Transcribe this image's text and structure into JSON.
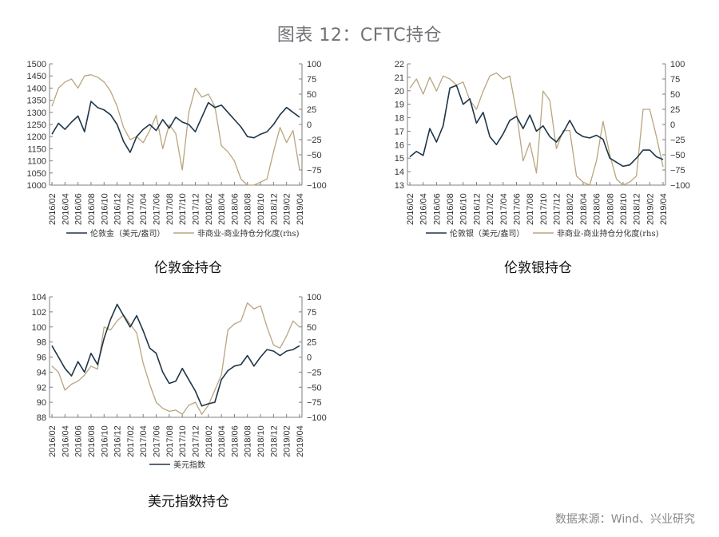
{
  "page": {
    "title": "图表 12：CFTC持仓",
    "source": "数据来源：Wind、兴业研究"
  },
  "colors": {
    "primary_line": "#1f3548",
    "rhs_line": "#b9a57f",
    "axis": "#7f7f7f"
  },
  "chart_data": [
    {
      "id": "gold",
      "type": "line",
      "title": "伦敦金持仓",
      "x": [
        "2016/02",
        "2016/03",
        "2016/04",
        "2016/05",
        "2016/06",
        "2016/07",
        "2016/08",
        "2016/09",
        "2016/10",
        "2016/11",
        "2016/12",
        "2017/01",
        "2017/02",
        "2017/03",
        "2017/04",
        "2017/05",
        "2017/06",
        "2017/07",
        "2017/08",
        "2017/09",
        "2017/10",
        "2017/11",
        "2017/12",
        "2018/01",
        "2018/02",
        "2018/03",
        "2018/04",
        "2018/05",
        "2018/06",
        "2018/07",
        "2018/08",
        "2018/09",
        "2018/10",
        "2018/11",
        "2018/12",
        "2019/01",
        "2019/02",
        "2019/03",
        "2019/04"
      ],
      "xticks": [
        "2016/02",
        "2016/04",
        "2016/06",
        "2016/08",
        "2016/10",
        "2016/12",
        "2017/02",
        "2017/04",
        "2017/06",
        "2017/08",
        "2017/10",
        "2017/12",
        "2018/02",
        "2018/04",
        "2018/06",
        "2018/08",
        "2018/10",
        "2018/12",
        "2019/02",
        "2019/04"
      ],
      "ylim": [
        1000,
        1500
      ],
      "yticks": [
        1000,
        1050,
        1100,
        1150,
        1200,
        1250,
        1300,
        1350,
        1400,
        1450,
        1500
      ],
      "y2lim": [
        -100,
        100
      ],
      "y2ticks": [
        -100,
        -75,
        -50,
        -25,
        0,
        25,
        50,
        75,
        100
      ],
      "series": [
        {
          "name": "伦敦金（美元/盎司）",
          "axis": "left",
          "values": [
            1210,
            1255,
            1230,
            1260,
            1285,
            1220,
            1345,
            1320,
            1310,
            1290,
            1250,
            1180,
            1135,
            1200,
            1230,
            1250,
            1225,
            1270,
            1235,
            1280,
            1260,
            1250,
            1220,
            1280,
            1340,
            1320,
            1330,
            1300,
            1270,
            1240,
            1200,
            1195,
            1210,
            1220,
            1250,
            1290,
            1320,
            1300,
            1280
          ]
        },
        {
          "name": "非商业-商业持仓分化度(rhs)",
          "axis": "right",
          "values": [
            30,
            60,
            70,
            75,
            60,
            80,
            82,
            78,
            70,
            55,
            30,
            -5,
            -25,
            -20,
            -30,
            -10,
            15,
            -40,
            0,
            -15,
            -75,
            20,
            60,
            45,
            50,
            30,
            -35,
            -45,
            -60,
            -90,
            -100,
            -100,
            -95,
            -90,
            -45,
            -5,
            -30,
            -10,
            -75
          ]
        }
      ],
      "legend": [
        "伦敦金（美元/盎司）",
        "非商业-商业持仓分化度(rhs)"
      ]
    },
    {
      "id": "silver",
      "type": "line",
      "title": "伦敦银持仓",
      "x": [
        "2016/02",
        "2016/03",
        "2016/04",
        "2016/05",
        "2016/06",
        "2016/07",
        "2016/08",
        "2016/09",
        "2016/10",
        "2016/11",
        "2016/12",
        "2017/01",
        "2017/02",
        "2017/03",
        "2017/04",
        "2017/05",
        "2017/06",
        "2017/07",
        "2017/08",
        "2017/09",
        "2017/10",
        "2017/11",
        "2017/12",
        "2018/01",
        "2018/02",
        "2018/03",
        "2018/04",
        "2018/05",
        "2018/06",
        "2018/07",
        "2018/08",
        "2018/09",
        "2018/10",
        "2018/11",
        "2018/12",
        "2019/01",
        "2019/02",
        "2019/03",
        "2019/04"
      ],
      "xticks": [
        "2016/02",
        "2016/04",
        "2016/06",
        "2016/08",
        "2016/10",
        "2016/12",
        "2017/02",
        "2017/04",
        "2017/06",
        "2017/08",
        "2017/10",
        "2017/12",
        "2018/02",
        "2018/04",
        "2018/06",
        "2018/08",
        "2018/10",
        "2018/12",
        "2019/02",
        "2019/04"
      ],
      "ylim": [
        13,
        22
      ],
      "yticks": [
        13,
        14,
        15,
        16,
        17,
        18,
        19,
        20,
        21,
        22
      ],
      "y2lim": [
        -100,
        100
      ],
      "y2ticks": [
        -100,
        -75,
        -50,
        -25,
        0,
        25,
        50,
        75,
        100
      ],
      "series": [
        {
          "name": "伦敦银（美元/盎司）",
          "axis": "left",
          "values": [
            15.1,
            15.5,
            15.2,
            17.2,
            16.2,
            17.4,
            20.2,
            20.4,
            19.0,
            19.4,
            17.6,
            18.4,
            16.6,
            16.0,
            16.8,
            17.8,
            18.1,
            17.2,
            18.2,
            17.0,
            17.4,
            16.6,
            16.2,
            16.9,
            17.8,
            16.9,
            16.6,
            16.5,
            16.7,
            16.4,
            15.0,
            14.7,
            14.4,
            14.5,
            15.0,
            15.6,
            15.6,
            15.1,
            14.9
          ]
        },
        {
          "name": "非商业-商业持仓分化度(rhs)",
          "axis": "right",
          "values": [
            60,
            75,
            50,
            78,
            55,
            80,
            75,
            65,
            70,
            40,
            25,
            55,
            80,
            85,
            75,
            80,
            20,
            -60,
            -30,
            -80,
            55,
            40,
            -40,
            -10,
            -10,
            -85,
            -95,
            -100,
            -60,
            5,
            -50,
            -90,
            -100,
            -95,
            -85,
            25,
            25,
            -20,
            -70
          ]
        }
      ],
      "legend": [
        "伦敦银（美元/盎司）",
        "非商业-商业持仓分化度(rhs)"
      ]
    },
    {
      "id": "usd",
      "type": "line",
      "title": "美元指数持仓",
      "x": [
        "2016/02",
        "2016/03",
        "2016/04",
        "2016/05",
        "2016/06",
        "2016/07",
        "2016/08",
        "2016/09",
        "2016/10",
        "2016/11",
        "2016/12",
        "2017/01",
        "2017/02",
        "2017/03",
        "2017/04",
        "2017/05",
        "2017/06",
        "2017/07",
        "2017/08",
        "2017/09",
        "2017/10",
        "2017/11",
        "2017/12",
        "2018/01",
        "2018/02",
        "2018/03",
        "2018/04",
        "2018/05",
        "2018/06",
        "2018/07",
        "2018/08",
        "2018/09",
        "2018/10",
        "2018/11",
        "2018/12",
        "2019/01",
        "2019/02",
        "2019/03",
        "2019/04"
      ],
      "xticks": [
        "2016/02",
        "2016/04",
        "2016/06",
        "2016/08",
        "2016/10",
        "2016/12",
        "2017/02",
        "2017/04",
        "2017/06",
        "2017/08",
        "2017/10",
        "2017/12",
        "2018/02",
        "2018/04",
        "2018/06",
        "2018/08",
        "2018/10",
        "2018/12",
        "2019/02",
        "2019/04"
      ],
      "ylim": [
        88,
        104
      ],
      "yticks": [
        88,
        90,
        92,
        94,
        96,
        98,
        100,
        102,
        104
      ],
      "y2lim": [
        -100,
        100
      ],
      "y2ticks": [
        -100,
        -75,
        -50,
        -25,
        0,
        25,
        50,
        75,
        100
      ],
      "series": [
        {
          "name": "美元指数",
          "axis": "left",
          "values": [
            97.5,
            96.0,
            94.5,
            93.5,
            95.4,
            94.0,
            96.5,
            95.0,
            98.5,
            101.0,
            103.0,
            101.5,
            100.0,
            101.5,
            99.5,
            97.2,
            96.5,
            94.0,
            92.5,
            92.8,
            94.5,
            93.0,
            91.5,
            89.5,
            89.8,
            90.0,
            93.0,
            94.2,
            94.8,
            95.0,
            96.2,
            94.8,
            96.0,
            97.0,
            96.8,
            96.2,
            96.8,
            97.0,
            97.5
          ]
        },
        {
          "name": "非商业-商业持仓分化度(rhs)",
          "axis": "right",
          "values": [
            -15,
            -25,
            -55,
            -45,
            -40,
            -30,
            -15,
            -20,
            50,
            45,
            60,
            70,
            55,
            40,
            -10,
            -45,
            -75,
            -85,
            -90,
            -88,
            -95,
            -80,
            -75,
            -95,
            -80,
            -55,
            -30,
            45,
            55,
            60,
            90,
            80,
            85,
            50,
            20,
            15,
            35,
            60,
            50
          ]
        }
      ],
      "legend": [
        "美元指数"
      ]
    }
  ]
}
